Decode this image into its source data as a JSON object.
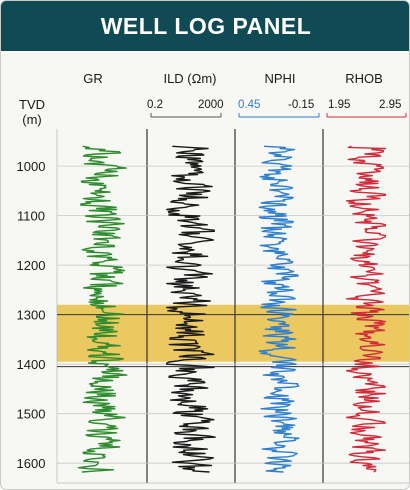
{
  "panel": {
    "title": "WELL LOG PANEL"
  },
  "header": {
    "tvd_label": "TVD",
    "tvd_unit": "(m)",
    "tracks": [
      {
        "name": "GR",
        "scale_left": "",
        "scale_right": "",
        "color": "#2e8b2e"
      },
      {
        "name": "ILD (Ωm)",
        "scale_left": "0.2",
        "scale_right": "2000",
        "color": "#1a1a1a"
      },
      {
        "name": "NPHI",
        "scale_left": "0.45",
        "scale_right": "-0.15",
        "color": "#2f7fd0"
      },
      {
        "name": "RHOB",
        "scale_left": "1.95",
        "scale_right": "2.95",
        "color": "#d12b3a"
      }
    ]
  },
  "colors": {
    "title_bar": "#0f4a55",
    "zone_fill": "#e8b830",
    "grid": "#333333",
    "gr": "#2e8b2e",
    "ild": "#1a1a1a",
    "nphi": "#2f7fd0",
    "rhob": "#d12b3a"
  },
  "chart_data": {
    "type": "line",
    "y_axis": {
      "label": "TVD (m)",
      "ticks": [
        1000,
        1100,
        1200,
        1300,
        1400,
        1500,
        1600
      ],
      "range": [
        925,
        1640
      ],
      "inverted": true
    },
    "highlight_zone": {
      "top": 1280,
      "bottom": 1395
    },
    "zone_lines": [
      1300,
      1405
    ],
    "depth_range": [
      960,
      1620
    ],
    "series": [
      {
        "name": "GR",
        "color": "#2e8b2e",
        "style": "noisy",
        "spread": 0.55
      },
      {
        "name": "ILD (Ωm)",
        "color": "#1a1a1a",
        "style": "noisy",
        "spread": 0.55,
        "scale": [
          0.2,
          2000
        ]
      },
      {
        "name": "NPHI",
        "color": "#2f7fd0",
        "style": "noisy",
        "spread": 0.45,
        "scale": [
          0.45,
          -0.15
        ]
      },
      {
        "name": "RHOB",
        "color": "#d12b3a",
        "style": "noisy",
        "spread": 0.45,
        "scale": [
          1.95,
          2.95
        ]
      }
    ]
  }
}
